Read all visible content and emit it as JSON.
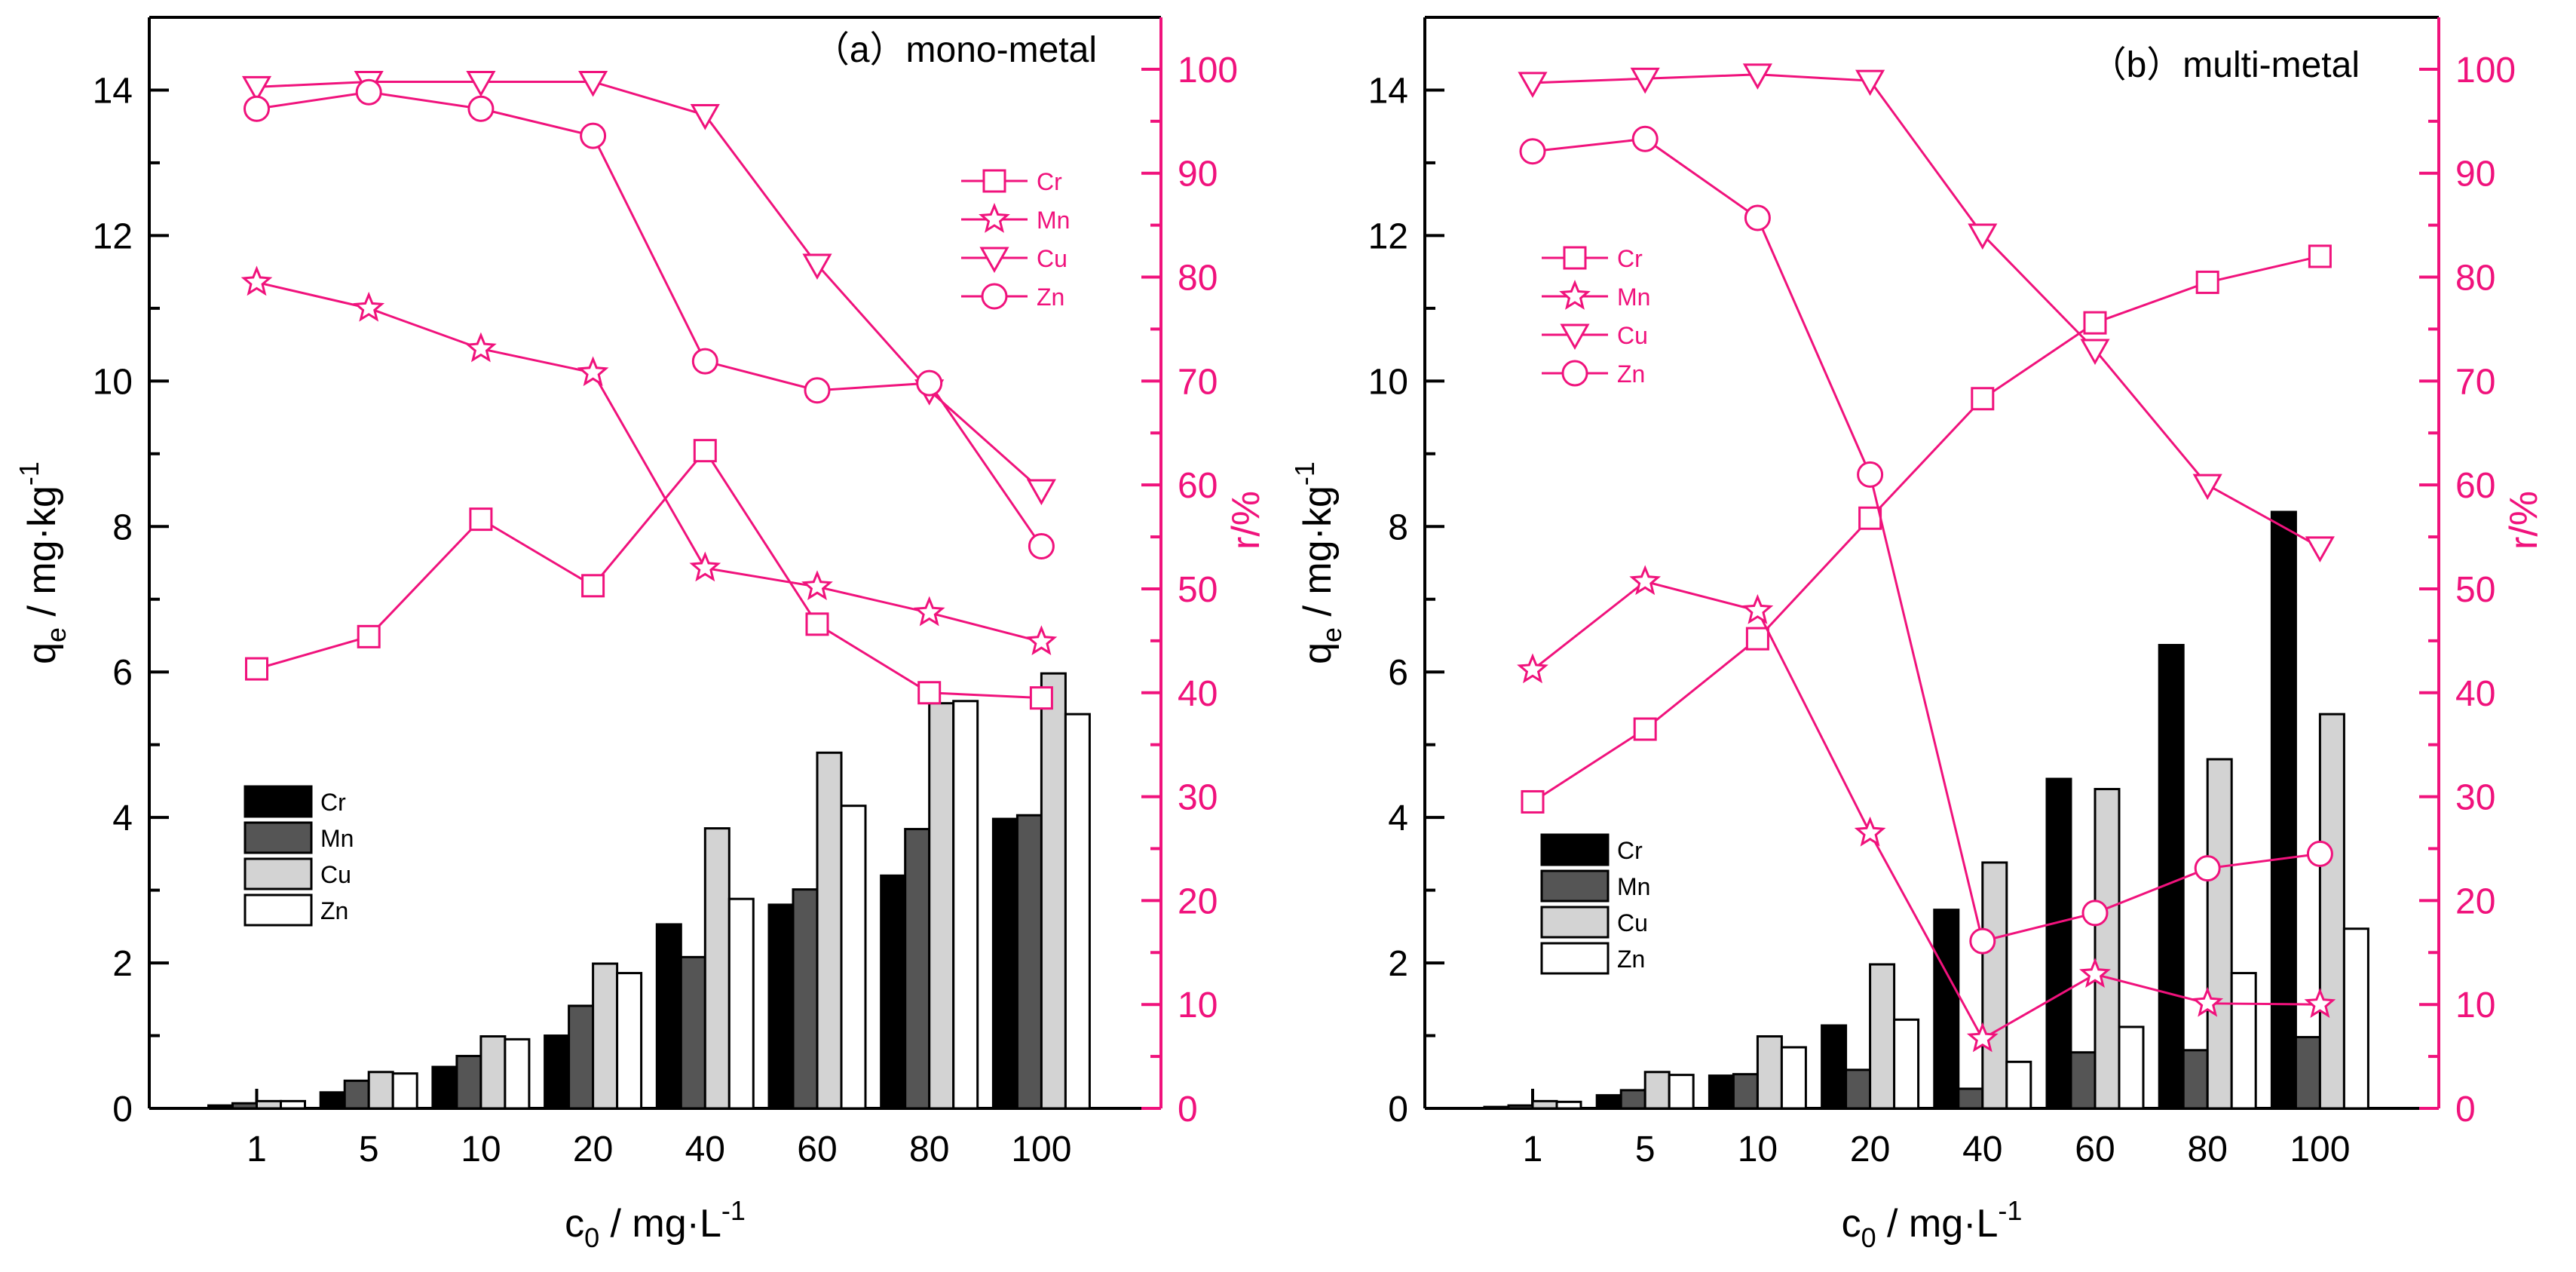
{
  "chart_data": [
    {
      "type": "bar+line",
      "title": "（a）mono-metal",
      "xlabel": "c0 / mg·L-1",
      "ylabel": "qe / mg·kg-1",
      "y2label": "r/%",
      "ylim": [
        0,
        15
      ],
      "y2lim": [
        0,
        105
      ],
      "yticks": [
        "0",
        "2",
        "4",
        "6",
        "8",
        "10",
        "12",
        "14"
      ],
      "y2ticks": [
        "0",
        "10",
        "20",
        "30",
        "40",
        "50",
        "60",
        "70",
        "80",
        "90",
        "100"
      ],
      "categories": [
        "1",
        "5",
        "10",
        "20",
        "40",
        "60",
        "80",
        "100"
      ],
      "bar_series": [
        {
          "name": "Cr",
          "color": "#000000",
          "values": [
            0.04,
            0.22,
            0.57,
            1.0,
            2.53,
            2.8,
            3.2,
            3.98
          ]
        },
        {
          "name": "Mn",
          "color": "#555555",
          "values": [
            0.07,
            0.38,
            0.72,
            1.41,
            2.08,
            3.01,
            3.84,
            4.03
          ]
        },
        {
          "name": "Cu",
          "color": "#d3d3d3",
          "values": [
            0.1,
            0.5,
            0.99,
            1.99,
            3.85,
            4.89,
            5.57,
            5.98
          ]
        },
        {
          "name": "Zn",
          "color": "#ffffff",
          "values": [
            0.1,
            0.48,
            0.95,
            1.86,
            2.88,
            4.16,
            5.6,
            5.42
          ]
        }
      ],
      "line_series": [
        {
          "name": "Cr",
          "marker": "square",
          "values": [
            42.3,
            45.4,
            56.7,
            50.3,
            63.3,
            46.6,
            40.0,
            39.5
          ]
        },
        {
          "name": "Mn",
          "marker": "star",
          "values": [
            79.5,
            77.0,
            73.1,
            70.8,
            52.0,
            50.2,
            47.7,
            44.9
          ]
        },
        {
          "name": "Cu",
          "marker": "triangle-down",
          "values": [
            98.3,
            98.8,
            98.8,
            98.8,
            95.6,
            81.2,
            69.1,
            59.5
          ]
        },
        {
          "name": "Zn",
          "marker": "circle",
          "values": [
            96.2,
            97.8,
            96.2,
            93.6,
            71.9,
            69.1,
            69.8,
            54.1
          ]
        }
      ]
    },
    {
      "type": "bar+line",
      "title": "（b）multi-metal",
      "xlabel": "c0 / mg·L-1",
      "ylabel": "qe / mg·kg-1",
      "y2label": "r/%",
      "ylim": [
        0,
        15
      ],
      "y2lim": [
        0,
        105
      ],
      "yticks": [
        "0",
        "2",
        "4",
        "6",
        "8",
        "10",
        "12",
        "14"
      ],
      "y2ticks": [
        "0",
        "10",
        "20",
        "30",
        "40",
        "50",
        "60",
        "70",
        "80",
        "90",
        "100"
      ],
      "categories": [
        "1",
        "5",
        "10",
        "20",
        "40",
        "60",
        "80",
        "100"
      ],
      "bar_series": [
        {
          "name": "Cr",
          "color": "#000000",
          "values": [
            0.02,
            0.18,
            0.45,
            1.14,
            2.73,
            4.53,
            6.37,
            8.2
          ]
        },
        {
          "name": "Mn",
          "color": "#555555",
          "values": [
            0.04,
            0.25,
            0.47,
            0.53,
            0.27,
            0.77,
            0.8,
            0.98
          ]
        },
        {
          "name": "Cu",
          "color": "#d3d3d3",
          "values": [
            0.1,
            0.5,
            0.99,
            1.98,
            3.38,
            4.39,
            4.8,
            5.42
          ]
        },
        {
          "name": "Zn",
          "color": "#ffffff",
          "values": [
            0.09,
            0.46,
            0.84,
            1.22,
            0.64,
            1.12,
            1.86,
            2.47
          ]
        }
      ],
      "line_series": [
        {
          "name": "Cr",
          "marker": "square",
          "values": [
            29.5,
            36.5,
            45.2,
            56.8,
            68.3,
            75.6,
            79.5,
            82.0
          ]
        },
        {
          "name": "Mn",
          "marker": "star",
          "values": [
            42.2,
            50.7,
            47.9,
            26.5,
            6.7,
            12.9,
            10.1,
            10.0
          ]
        },
        {
          "name": "Cu",
          "marker": "triangle-down",
          "values": [
            98.7,
            99.1,
            99.5,
            98.9,
            84.1,
            73.0,
            60.0,
            54.0
          ]
        },
        {
          "name": "Zn",
          "marker": "circle",
          "values": [
            92.1,
            93.3,
            85.7,
            61.0,
            16.1,
            18.8,
            23.1,
            24.5
          ]
        }
      ]
    }
  ]
}
